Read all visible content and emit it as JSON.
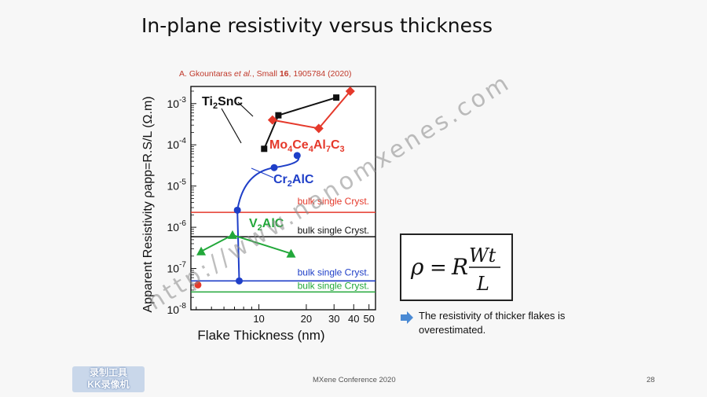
{
  "slide": {
    "title": "In-plane resistivity versus thickness",
    "citation": {
      "authors": "A. Gkountaras ",
      "etal": "et al.",
      "journal": ", Small ",
      "volume": "16",
      "rest": ", 1905784 (2020)"
    },
    "bullet": "The resistivity of thicker flakes is overestimated.",
    "footer": "MXene Conference 2020",
    "page_number": "28",
    "watermark": "http://www.nanomxenes.com",
    "stamp_line1": "录制工具",
    "stamp_line2": "KK录像机",
    "colors": {
      "red": "#e5392b",
      "black": "#111111",
      "blue": "#1f3fc8",
      "green": "#22a83a",
      "arrow": "#4a8ad4"
    }
  },
  "chart_data": {
    "type": "scatter",
    "xlabel": "Flake Thickness (nm)",
    "ylabel": "Apparent Resistivity ρapp=R.S/L (Ω.m)",
    "xscale": "log",
    "yscale": "log",
    "xlim": [
      3.7,
      55
    ],
    "ylim": [
      1e-08,
      0.0026
    ],
    "x_ticks": [
      10,
      20,
      30,
      40,
      50
    ],
    "y_ticks": [
      "10-8",
      "10-7",
      "10-6",
      "10-5",
      "10-4",
      "10-3"
    ],
    "series": [
      {
        "name": "Ti2SnC",
        "color": "#111111",
        "marker": "square",
        "points": [
          [
            10.8,
            8e-05
          ],
          [
            13.3,
            0.00052
          ],
          [
            31,
            0.0014
          ]
        ]
      },
      {
        "name": "Mo4Ce4Al7C3",
        "color": "#e5392b",
        "marker": "diamond",
        "points": [
          [
            12.2,
            0.0004
          ],
          [
            24,
            0.00025
          ],
          [
            38,
            0.002
          ]
        ]
      },
      {
        "name": "Cr2AlC",
        "color": "#1f3fc8",
        "marker": "circle",
        "points": [
          [
            7.5,
            5e-08
          ],
          [
            7.3,
            2.6e-06
          ],
          [
            12.5,
            2.8e-05
          ],
          [
            17.5,
            5.5e-05
          ]
        ]
      },
      {
        "name": "V2AlC",
        "color": "#22a83a",
        "marker": "triangle",
        "points": [
          [
            4.3,
            2.6e-07
          ],
          [
            6.8,
            6.5e-07
          ],
          [
            16,
            2.3e-07
          ]
        ]
      },
      {
        "name": "",
        "color": "#e5392b",
        "marker": "circle",
        "points": [
          [
            4.1,
            4e-08
          ]
        ]
      }
    ],
    "reference_lines": [
      {
        "label": "bulk single Cryst.",
        "y": 2.3e-06,
        "color": "#e5392b"
      },
      {
        "label": "bulk single Cryst.",
        "y": 5.9e-07,
        "color": "#111111"
      },
      {
        "label": "bulk single Cryst.",
        "y": 5e-08,
        "color": "#1f3fc8"
      },
      {
        "label": "bulk single Cryst.",
        "y": 2.7e-08,
        "color": "#22a83a"
      }
    ],
    "grid": false
  }
}
